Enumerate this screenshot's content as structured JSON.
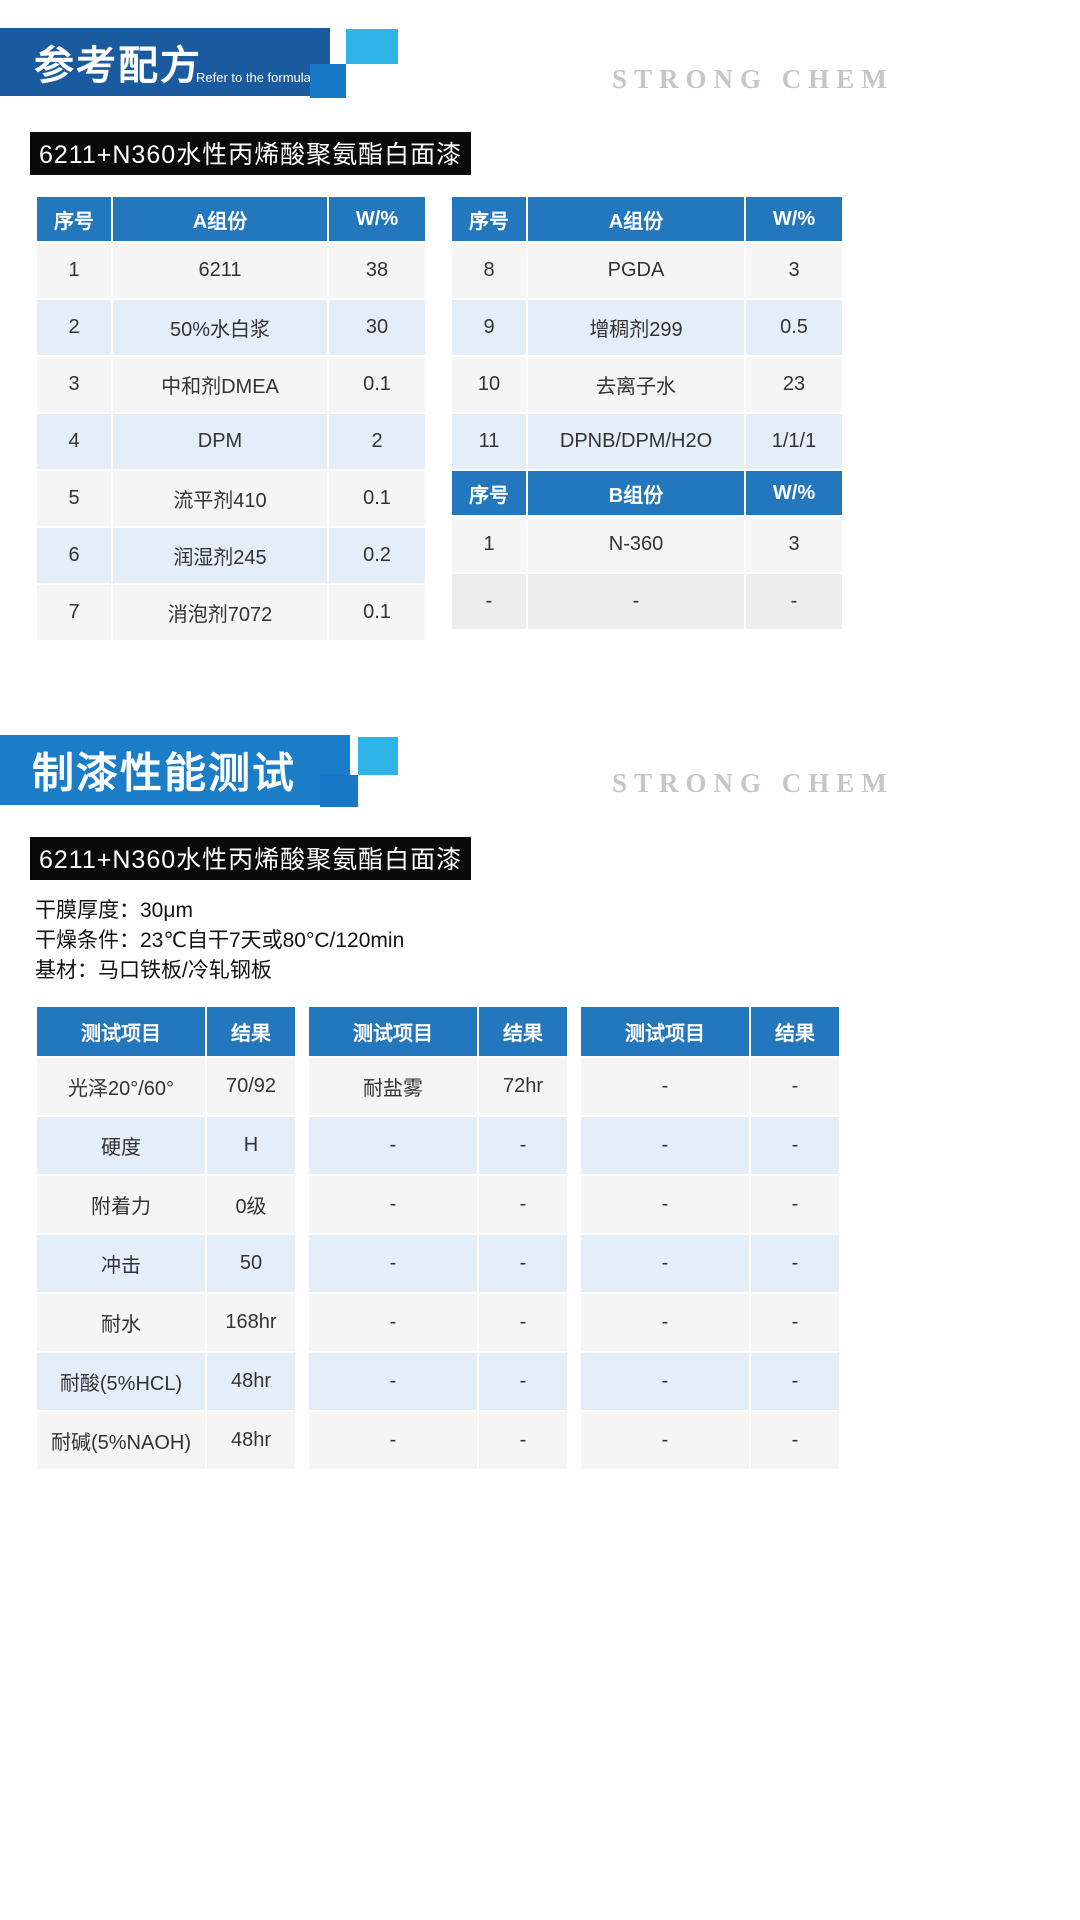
{
  "colors": {
    "banner1_bg": "#1a5a9e",
    "banner2_bg": "#1b7cc8",
    "table_header_bg": "#2377bd",
    "square_light": "#2fb4e8",
    "square_blue": "#1778c8",
    "row_gray": "#f5f5f5",
    "row_blue": "#e4eef8",
    "title_bar_bg": "#0a0a0a",
    "watermark_gray": "#c6c6c6"
  },
  "section1": {
    "banner_title": "参考配方",
    "banner_subtitle": "Refer to the formula",
    "watermark": "STRONG CHEM",
    "product_title": "6211+N360水性丙烯酸聚氨酯白面漆",
    "tableA": {
      "headers": [
        "序号",
        "A组份",
        "W/%"
      ],
      "rows": [
        [
          "1",
          "6211",
          "38"
        ],
        [
          "2",
          "50%水白浆",
          "30"
        ],
        [
          "3",
          "中和剂DMEA",
          "0.1"
        ],
        [
          "4",
          "DPM",
          "2"
        ],
        [
          "5",
          "流平剂410",
          "0.1"
        ],
        [
          "6",
          "润湿剂245",
          "0.2"
        ],
        [
          "7",
          "消泡剂7072",
          "0.1"
        ]
      ]
    },
    "tableB": {
      "headers_a": [
        "序号",
        "A组份",
        "W/%"
      ],
      "rows_a": [
        [
          "8",
          "PGDA",
          "3"
        ],
        [
          "9",
          "增稠剂299",
          "0.5"
        ],
        [
          "10",
          "去离子水",
          "23"
        ],
        [
          "11",
          "DPNB/DPM/H2O",
          "1/1/1"
        ]
      ],
      "headers_b": [
        "序号",
        "B组份",
        "W/%"
      ],
      "rows_b": [
        [
          "1",
          "N-360",
          "3"
        ],
        [
          "-",
          "-",
          "-"
        ]
      ]
    }
  },
  "section2": {
    "banner_title": "制漆性能测试",
    "watermark": "STRONG CHEM",
    "product_title": "6211+N360水性丙烯酸聚氨酯白面漆",
    "info": [
      "干膜厚度：30μm",
      "干燥条件：23℃自干7天或80°C/120min",
      "基材：马口铁板/冷轧钢板"
    ],
    "perf_headers": [
      "测试项目",
      "结果"
    ],
    "groups": [
      {
        "rows": [
          [
            "光泽20°/60°",
            "70/92"
          ],
          [
            "硬度",
            "H"
          ],
          [
            "附着力",
            "0级"
          ],
          [
            "冲击",
            "50"
          ],
          [
            "耐水",
            "168hr"
          ],
          [
            "耐酸(5%HCL)",
            "48hr"
          ],
          [
            "耐碱(5%NAOH)",
            "48hr"
          ]
        ]
      },
      {
        "rows": [
          [
            "耐盐雾",
            "72hr"
          ],
          [
            "-",
            "-"
          ],
          [
            "-",
            "-"
          ],
          [
            "-",
            "-"
          ],
          [
            "-",
            "-"
          ],
          [
            "-",
            "-"
          ],
          [
            "-",
            "-"
          ]
        ]
      },
      {
        "rows": [
          [
            "-",
            "-"
          ],
          [
            "-",
            "-"
          ],
          [
            "-",
            "-"
          ],
          [
            "-",
            "-"
          ],
          [
            "-",
            "-"
          ],
          [
            "-",
            "-"
          ],
          [
            "-",
            "-"
          ]
        ]
      }
    ]
  }
}
